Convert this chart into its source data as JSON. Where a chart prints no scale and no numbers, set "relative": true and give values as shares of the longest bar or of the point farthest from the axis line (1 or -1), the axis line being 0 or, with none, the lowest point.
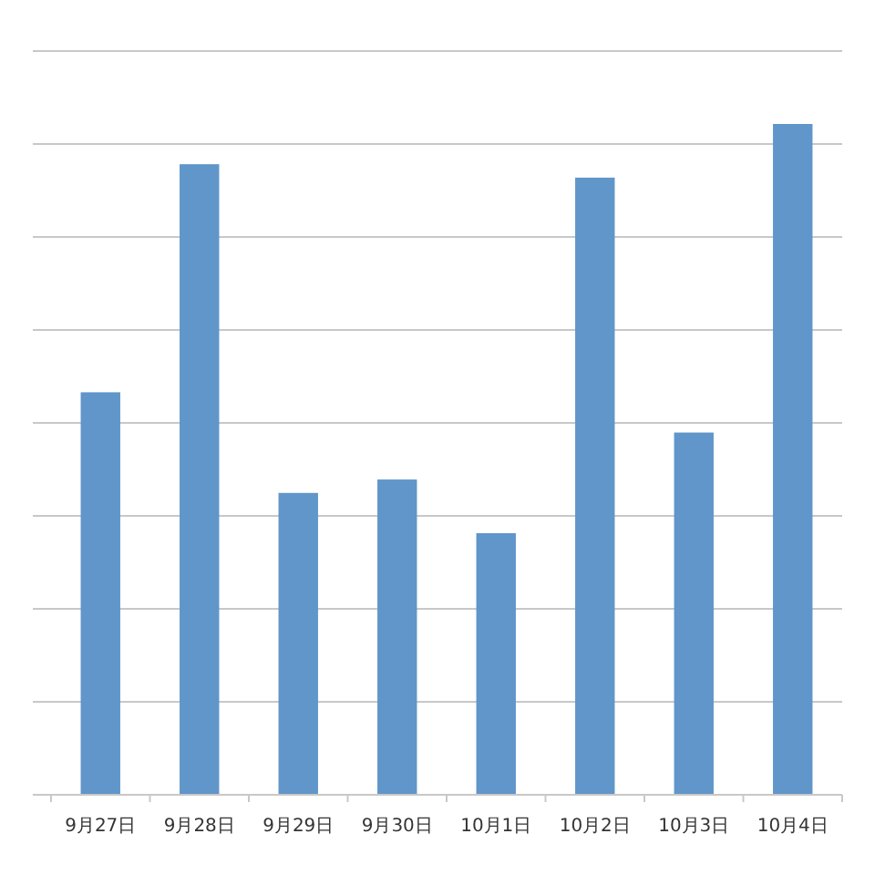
{
  "chart_data": {
    "type": "bar",
    "relative": true,
    "grid": true,
    "color": "#6096c9",
    "categories": [
      "9月27日",
      "9月28日",
      "9月29日",
      "9月30日",
      "10月1日",
      "10月2日",
      "10月3日",
      "10月4日"
    ],
    "values": [
      0.6,
      0.94,
      0.45,
      0.47,
      0.39,
      0.92,
      0.54,
      1
    ]
  }
}
